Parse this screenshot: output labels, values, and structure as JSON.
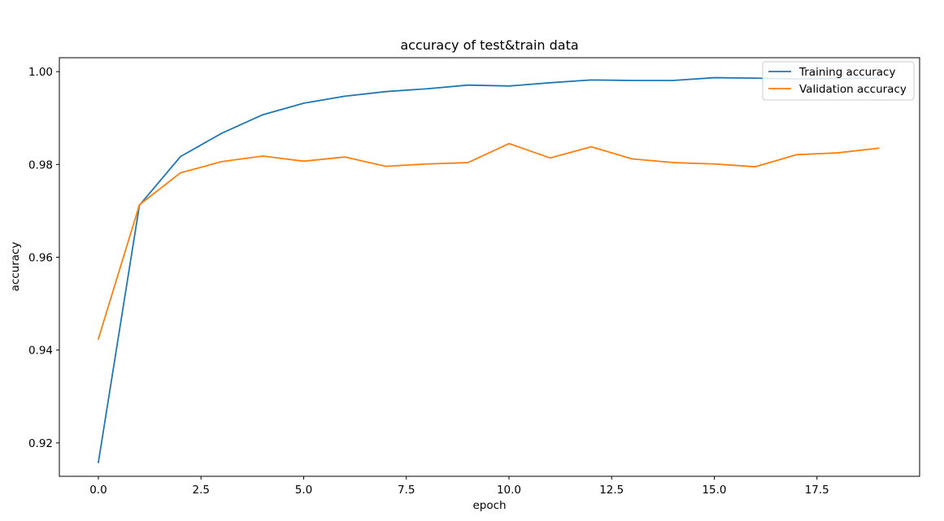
{
  "chart_data": {
    "type": "line",
    "title": "accuracy of test&train data",
    "xlabel": "epoch",
    "ylabel": "accuracy",
    "xlim": [
      -0.95,
      20.0
    ],
    "ylim": [
      0.9128,
      1.003
    ],
    "x_ticks": [
      0.0,
      2.5,
      5.0,
      7.5,
      10.0,
      12.5,
      15.0,
      17.5
    ],
    "x_tick_labels": [
      "0.0",
      "2.5",
      "5.0",
      "7.5",
      "10.0",
      "12.5",
      "15.0",
      "17.5"
    ],
    "y_ticks": [
      0.92,
      0.94,
      0.96,
      0.98,
      1.0
    ],
    "y_tick_labels": [
      "0.92",
      "0.94",
      "0.96",
      "0.98",
      "1.00"
    ],
    "grid": false,
    "legend_position": "top-right",
    "x": [
      0,
      1,
      2,
      3,
      4,
      5,
      6,
      7,
      8,
      9,
      10,
      11,
      12,
      13,
      14,
      15,
      16,
      17,
      18,
      19
    ],
    "series": [
      {
        "name": "Training accuracy",
        "color": "#1f77b4",
        "values": [
          0.9158,
          0.9712,
          0.9817,
          0.9867,
          0.9907,
          0.9932,
          0.9947,
          0.9957,
          0.9963,
          0.9971,
          0.9969,
          0.9976,
          0.9982,
          0.9981,
          0.9981,
          0.9987,
          0.9986,
          0.9984,
          0.9985,
          0.9986
        ]
      },
      {
        "name": "Validation accuracy",
        "color": "#ff7f0e",
        "values": [
          0.9424,
          0.9713,
          0.9782,
          0.9806,
          0.9818,
          0.9807,
          0.9816,
          0.9796,
          0.9801,
          0.9804,
          0.9845,
          0.9814,
          0.9838,
          0.9812,
          0.9804,
          0.9801,
          0.9795,
          0.9821,
          0.9825,
          0.9835
        ]
      }
    ]
  }
}
